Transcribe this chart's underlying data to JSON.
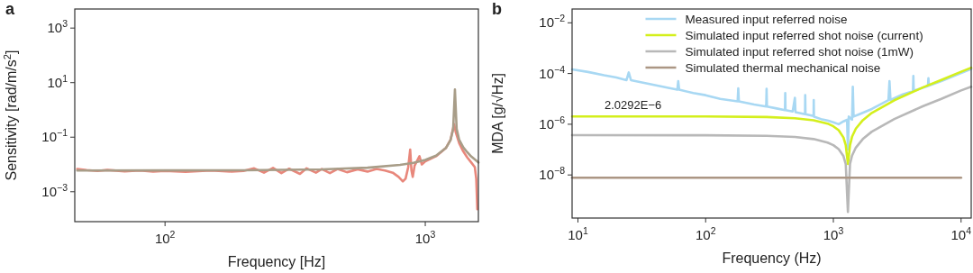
{
  "chart_data": [
    {
      "type": "line",
      "title": "a",
      "xlabel": "Frequency [Hz]",
      "ylabel": "Sensitivity [rad/m/s$^{2}$]",
      "log": "xy",
      "xlim": [
        45,
        1600
      ],
      "ylim": [
        8e-05,
        5000
      ],
      "xticks": [
        {
          "value": 100,
          "label": "10$^{2}$"
        },
        {
          "value": 1000,
          "label": "10$^{3}$"
        }
      ],
      "yticks": [
        {
          "value": 0.001,
          "label": "10$^{−3}$"
        },
        {
          "value": 0.1,
          "label": "10$^{−1}$"
        },
        {
          "value": 10,
          "label": "10$^{1}$"
        },
        {
          "value": 1000,
          "label": "10$^{3}$"
        }
      ],
      "series": [
        {
          "color": "#e8877b",
          "x": [
            46,
            50,
            55,
            60,
            70,
            80,
            90,
            100,
            120,
            150,
            180,
            200,
            220,
            240,
            260,
            280,
            300,
            330,
            350,
            380,
            400,
            430,
            460,
            500,
            550,
            600,
            650,
            700,
            750,
            790,
            820,
            840,
            860,
            875,
            885,
            895,
            910,
            950,
            970,
            1000,
            1100,
            1200,
            1250,
            1290,
            1310,
            1350,
            1400,
            1450,
            1500,
            1550,
            1570,
            1585
          ],
          "values": [
            0.0068,
            0.0062,
            0.0058,
            0.0063,
            0.0056,
            0.006,
            0.0055,
            0.0058,
            0.0054,
            0.006,
            0.0055,
            0.0058,
            0.0072,
            0.005,
            0.0075,
            0.0048,
            0.007,
            0.0045,
            0.0072,
            0.005,
            0.0068,
            0.0048,
            0.0068,
            0.0052,
            0.0066,
            0.0055,
            0.0068,
            0.006,
            0.005,
            0.0035,
            0.0024,
            0.003,
            0.008,
            0.035,
            0.006,
            0.0035,
            0.009,
            0.02,
            0.01,
            0.013,
            0.02,
            0.04,
            0.08,
            0.3,
            0.15,
            0.06,
            0.03,
            0.018,
            0.012,
            0.008,
            0.003,
            0.00023
          ]
        },
        {
          "color": "#a89d88",
          "x": [
            46,
            100,
            200,
            400,
            600,
            800,
            900,
            1000,
            1100,
            1200,
            1250,
            1280,
            1300,
            1320,
            1350,
            1400,
            1450,
            1500,
            1600
          ],
          "values": [
            0.006,
            0.00604,
            0.00614,
            0.0066,
            0.0076,
            0.0097,
            0.0115,
            0.0147,
            0.021,
            0.04,
            0.077,
            0.2,
            5.6,
            0.2,
            0.08,
            0.042,
            0.028,
            0.0197,
            0.0118
          ]
        }
      ]
    },
    {
      "type": "line",
      "title": "b",
      "xlabel": "Frequency (Hz)",
      "ylabel": "MDA [g/√Hz]",
      "log": "xy",
      "xlim": [
        9,
        12000
      ],
      "ylim": [
        2e-10,
        0.035
      ],
      "legend": "top",
      "xticks": [
        {
          "value": 10,
          "label": "10$^{1}$"
        },
        {
          "value": 100,
          "label": "10$^{2}$"
        },
        {
          "value": 1000,
          "label": "10$^{3}$"
        },
        {
          "value": 10000,
          "label": "10$^{4}$"
        }
      ],
      "yticks": [
        {
          "value": 1e-08,
          "label": "10$^{−8}$"
        },
        {
          "value": 1e-06,
          "label": "10$^{−6}$"
        },
        {
          "value": 0.0001,
          "label": "10$^{−4}$"
        },
        {
          "value": 0.01,
          "label": "10$^{−2}$"
        }
      ],
      "annotations": [
        {
          "text": "2.0292E−6",
          "x": 27,
          "y": 2.0292e-06
        }
      ],
      "series": [
        {
          "name": "Measured input referred noise",
          "color": "#a8d8f3",
          "x": [
            9,
            12,
            16,
            20,
            24,
            25,
            26,
            35,
            50,
            60,
            61,
            62,
            80,
            100,
            130,
            178,
            180,
            182,
            240,
            298,
            300,
            302,
            360,
            418,
            420,
            422,
            480,
            500,
            505,
            600,
            602,
            605,
            700,
            702,
            705,
            800,
            900,
            1000,
            1100,
            1200,
            1280,
            1300,
            1320,
            1400,
            1420,
            1440,
            1600,
            2000,
            2700,
            2750,
            2800,
            3500,
            4200,
            4230,
            4260,
            5500,
            5550,
            5600,
            7000,
            10000,
            12000
          ],
          "values": [
            0.000145,
            0.000115,
            8.5e-05,
            7e-05,
            5.5e-05,
            0.00011,
            5.5e-05,
            4e-05,
            2.8e-05,
            2.3e-05,
            5e-05,
            2.3e-05,
            1.7e-05,
            1.4e-05,
            1e-05,
            8e-06,
            2.6e-05,
            8e-06,
            6e-06,
            5e-06,
            2.5e-05,
            5e-06,
            4.2e-06,
            3.6e-06,
            1.7e-05,
            3.6e-06,
            3.2e-06,
            1.1e-05,
            3e-06,
            2.5e-06,
            1.4e-05,
            2.5e-06,
            2.1e-06,
            9e-06,
            2e-06,
            1.6e-06,
            1.4e-06,
            1.2e-06,
            1e-06,
            1.3e-06,
            1.5e-06,
            1e-07,
            2e-06,
            1.5e-06,
            3e-05,
            2e-06,
            2.5e-06,
            4e-06,
            9e-06,
            5e-05,
            9e-06,
            1.5e-05,
            2e-05,
            8e-05,
            2.1e-05,
            3.2e-05,
            6.5e-05,
            3.3e-05,
            5e-05,
            0.000105,
            0.00015
          ]
        },
        {
          "name": "Simulated input referred shot noise (current)",
          "color": "#d4ef1c",
          "x": [
            9,
            100,
            300,
            500,
            700,
            900,
            1000,
            1100,
            1200,
            1250,
            1300,
            1350,
            1400,
            1500,
            1700,
            2000,
            3000,
            5000,
            7000,
            10000,
            12000
          ],
          "values": [
            2.0292e-06,
            2.02e-06,
            1.93e-06,
            1.73e-06,
            1.44e-06,
            1.06e-06,
            8.3e-07,
            5.8e-07,
            3e-07,
            1.5e-07,
            2.7e-08,
            1.5e-07,
            3.2e-07,
            6.7e-07,
            1.44e-06,
            2.8e-06,
            8.8e-06,
            2.8e-05,
            5.6e-05,
            0.000118,
            0.00017
          ]
        },
        {
          "name": "Simulated input referred shot noise (1mW)",
          "color": "#b8b8b8",
          "x": [
            9,
            100,
            300,
            500,
            700,
            900,
            1000,
            1100,
            1200,
            1250,
            1300,
            1350,
            1400,
            1500,
            1700,
            2000,
            3000,
            5000,
            7000,
            10000,
            12000
          ],
          "values": [
            3.7e-07,
            3.68e-07,
            3.5e-07,
            3.15e-07,
            2.6e-07,
            1.9e-07,
            1.5e-07,
            1.05e-07,
            5.5e-08,
            2.7e-08,
            3.5e-10,
            2.7e-08,
            5.8e-08,
            1.2e-07,
            2.6e-07,
            5.1e-07,
            1.6e-06,
            5.1e-06,
            1e-05,
            2.15e-05,
            3e-05
          ]
        },
        {
          "name": "Simulated thermal mechanical noise",
          "color": "#ab9684",
          "x": [
            9,
            10000
          ],
          "values": [
            7.8e-09,
            7.8e-09
          ]
        }
      ]
    }
  ]
}
